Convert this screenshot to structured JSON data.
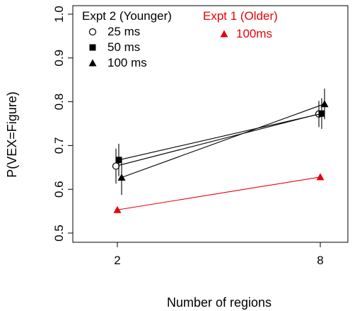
{
  "chart_data": {
    "type": "line",
    "xlabel": "Number of regions",
    "ylabel": "P(VEX=Figure)",
    "x": [
      2,
      8
    ],
    "xlim": [
      2,
      8
    ],
    "ylim": [
      0.5,
      1.0
    ],
    "y_ticks": [
      "0.5",
      "0.6",
      "0.7",
      "0.8",
      "0.9",
      "1.0"
    ],
    "x_ticks": [
      "2",
      "8"
    ],
    "grid": false,
    "legend_groups": [
      {
        "title": "Expt 2 (Younger)",
        "color": "#000000",
        "entries": [
          {
            "name": "25 ms",
            "marker": "open-circle"
          },
          {
            "name": "50 ms",
            "marker": "filled-square"
          },
          {
            "name": "100 ms",
            "marker": "filled-triangle"
          }
        ]
      },
      {
        "title": "Expt 1 (Older)",
        "color": "#e8000b",
        "entries": [
          {
            "name": "100ms",
            "marker": "filled-triangle"
          }
        ]
      }
    ],
    "series": [
      {
        "name": "25 ms",
        "group": "Expt 2 (Younger)",
        "marker": "open-circle",
        "color": "#000000",
        "values": [
          0.653,
          0.772
        ],
        "error": [
          0.04,
          0.03
        ]
      },
      {
        "name": "50 ms",
        "group": "Expt 2 (Younger)",
        "marker": "filled-square",
        "color": "#000000",
        "values": [
          0.667,
          0.773
        ],
        "error": [
          0.037,
          0.035
        ]
      },
      {
        "name": "100 ms",
        "group": "Expt 2 (Younger)",
        "marker": "filled-triangle",
        "color": "#000000",
        "values": [
          0.627,
          0.795
        ],
        "error": [
          0.04,
          0.035
        ]
      },
      {
        "name": "100ms",
        "group": "Expt 1 (Older)",
        "marker": "filled-triangle",
        "color": "#e8000b",
        "values": [
          0.553,
          0.628
        ],
        "error": [
          0,
          0
        ]
      }
    ]
  }
}
